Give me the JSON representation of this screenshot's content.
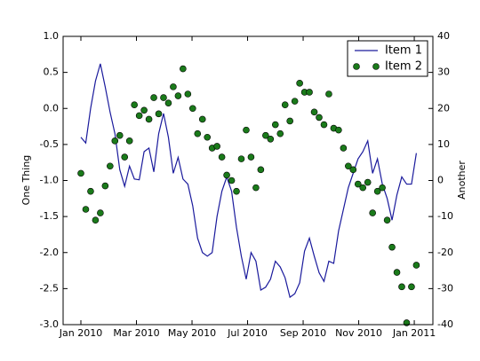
{
  "chart_data": {
    "type": "line",
    "x": [
      0,
      0.175,
      0.35,
      0.525,
      0.7,
      0.875,
      1.05,
      1.225,
      1.4,
      1.575,
      1.75,
      1.925,
      2.1,
      2.275,
      2.45,
      2.625,
      2.8,
      2.975,
      3.15,
      3.325,
      3.5,
      3.675,
      3.85,
      4.025,
      4.2,
      4.375,
      4.55,
      4.725,
      4.9,
      5.075,
      5.25,
      5.425,
      5.6,
      5.775,
      5.95,
      6.125,
      6.3,
      6.475,
      6.65,
      6.825,
      7.0,
      7.175,
      7.35,
      7.525,
      7.7,
      7.875,
      8.05,
      8.225,
      8.4,
      8.575,
      8.75,
      8.925,
      9.1,
      9.275,
      9.45,
      9.625,
      9.8,
      9.975,
      10.15,
      10.325,
      10.5,
      10.675,
      10.85,
      11.025,
      11.2,
      11.375,
      11.55,
      11.725,
      11.9,
      12.075
    ],
    "series": [
      {
        "name": "Item 1",
        "type": "line",
        "color": "#1a1a9c",
        "values": [
          -0.4,
          -0.48,
          0.0,
          0.38,
          0.62,
          0.3,
          -0.05,
          -0.35,
          -0.85,
          -1.08,
          -0.8,
          -0.98,
          -0.99,
          -0.6,
          -0.55,
          -0.88,
          -0.35,
          -0.07,
          -0.4,
          -0.9,
          -0.68,
          -0.98,
          -1.05,
          -1.35,
          -1.8,
          -2.0,
          -2.05,
          -2.0,
          -1.5,
          -1.15,
          -0.95,
          -1.15,
          -1.65,
          -2.05,
          -2.37,
          -2.0,
          -2.12,
          -2.52,
          -2.48,
          -2.37,
          -2.12,
          -2.2,
          -2.35,
          -2.62,
          -2.57,
          -2.42,
          -1.98,
          -1.8,
          -2.05,
          -2.28,
          -2.4,
          -2.12,
          -2.15,
          -1.7,
          -1.4,
          -1.1,
          -0.9,
          -0.7,
          -0.6,
          -0.45,
          -0.9,
          -0.7,
          -1.05,
          -1.25,
          -1.55,
          -1.2,
          -0.95,
          -1.05,
          -1.05,
          -0.62
        ]
      },
      {
        "name": "Item 2",
        "type": "scatter",
        "axis": "y2",
        "color": "#1a7a1a",
        "values": [
          2,
          -8,
          -3,
          -11,
          -9,
          -1.5,
          4,
          11,
          12.5,
          6.5,
          11,
          21,
          18,
          19.5,
          17,
          23,
          18.5,
          23,
          21.5,
          26,
          23.5,
          31,
          24,
          20,
          13,
          17,
          12,
          9,
          9.5,
          6.5,
          1.5,
          0,
          -3,
          6,
          14,
          6.5,
          -2,
          3,
          12.5,
          11.5,
          15.5,
          13,
          21,
          16.5,
          22,
          27,
          24.5,
          24.5,
          19,
          17.5,
          15.5,
          24,
          14.5,
          14,
          9,
          4,
          3,
          -1,
          -2,
          -0.5,
          -9,
          -3,
          -2,
          -11,
          -18.5,
          -25.5,
          -29.5,
          -39.5,
          -29.5,
          -23.5
        ]
      }
    ],
    "ylabel": "One Thing",
    "y2label": "Another",
    "xlim": [
      -0.64,
      12.67
    ],
    "xticks": [
      {
        "value": 0,
        "label": "Jan 2010"
      },
      {
        "value": 2,
        "label": "Mar 2010"
      },
      {
        "value": 4,
        "label": "May 2010"
      },
      {
        "value": 6,
        "label": "Jul 2010"
      },
      {
        "value": 8,
        "label": "Sep 2010"
      },
      {
        "value": 10,
        "label": "Nov 2010"
      },
      {
        "value": 12,
        "label": "Jan 2011"
      }
    ],
    "ylim": [
      -3,
      1
    ],
    "yticks": [
      {
        "value": -3,
        "label": "-3.0"
      },
      -2.5,
      {
        "value": -2,
        "label": "-2.0"
      },
      -1.5,
      {
        "value": -1,
        "label": "-1.0"
      },
      -0.5,
      {
        "value": 0,
        "label": "0.0"
      },
      0.5,
      {
        "value": 1,
        "label": "1.0"
      }
    ],
    "y2lim": [
      -40,
      40
    ],
    "y2ticks": [
      -40,
      -30,
      -20,
      -10,
      0,
      10,
      20,
      30,
      40
    ],
    "legend": "upper right"
  }
}
